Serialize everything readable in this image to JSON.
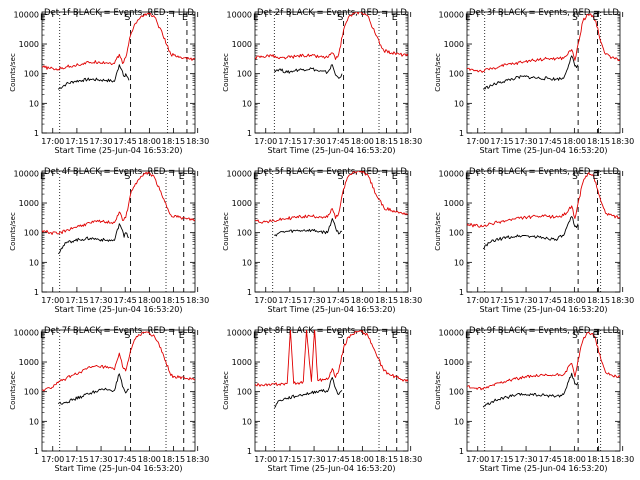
{
  "figure": {
    "x_ticks": [
      "17:00",
      "17:15",
      "17:30",
      "17:45",
      "18:00",
      "18:15",
      "18:30"
    ],
    "y_ticks": [
      "1",
      "10",
      "100",
      "1000",
      "10000"
    ],
    "ylabel": "Counts/sec",
    "xlabel": "Start Time (25-Jun-04 16:53:20)",
    "legend": "BLACK = Events, RED = LLD",
    "marker_start": "S",
    "marker_end": "E",
    "colors": {
      "events": "#000000",
      "lld": "#e00000",
      "axes": "#000000",
      "background": "#ffffff"
    }
  },
  "chart_data": [
    {
      "type": "line",
      "title": "Det 1f BLACK = Events, RED = LLD",
      "xlabel": "Start Time (25-Jun-04 16:53:20)",
      "ylabel": "Counts/sec",
      "yscale": "log",
      "ylim": [
        1,
        12000
      ],
      "xlim_min": [
        0,
        95
      ],
      "x_tick_labels": [
        "17:00",
        "17:15",
        "17:30",
        "17:45",
        "18:00",
        "18:15",
        "18:30"
      ],
      "dotted_lines_min": [
        11,
        78
      ],
      "dashed_lines_min": [
        55,
        90
      ],
      "series": [
        {
          "name": "Events",
          "color": "#000000",
          "x": [
            10,
            15,
            20,
            25,
            30,
            35,
            40,
            45,
            48,
            50,
            51,
            52,
            54
          ],
          "y": [
            30,
            45,
            55,
            60,
            65,
            62,
            60,
            55,
            200,
            120,
            80,
            100,
            60
          ]
        },
        {
          "name": "LLD",
          "color": "#e00000",
          "x": [
            0,
            5,
            10,
            15,
            20,
            25,
            30,
            35,
            40,
            45,
            48,
            50,
            52,
            55,
            58,
            62,
            66,
            70,
            75,
            80,
            85,
            90,
            95
          ],
          "y": [
            170,
            150,
            140,
            170,
            190,
            215,
            240,
            250,
            235,
            220,
            450,
            220,
            350,
            2000,
            5000,
            9000,
            11000,
            8000,
            2000,
            450,
            350,
            310,
            300
          ]
        }
      ]
    },
    {
      "type": "line",
      "title": "Det 2f BLACK = Events, RED = LLD",
      "xlabel": "Start Time (25-Jun-04 16:53:20)",
      "ylabel": "Counts/sec",
      "yscale": "log",
      "ylim": [
        1,
        12000
      ],
      "xlim_min": [
        0,
        95
      ],
      "x_tick_labels": [
        "17:00",
        "17:15",
        "17:30",
        "17:45",
        "18:00",
        "18:15",
        "18:30"
      ],
      "dotted_lines_min": [
        12,
        77
      ],
      "dashed_lines_min": [
        55,
        88
      ],
      "series": [
        {
          "name": "Events",
          "color": "#000000",
          "x": [
            12,
            15,
            20,
            25,
            30,
            35,
            40,
            45,
            48,
            50,
            52,
            54
          ],
          "y": [
            130,
            140,
            110,
            130,
            140,
            150,
            120,
            110,
            200,
            90,
            70,
            100
          ]
        },
        {
          "name": "LLD",
          "color": "#e00000",
          "x": [
            0,
            5,
            10,
            15,
            20,
            25,
            30,
            35,
            40,
            45,
            48,
            50,
            52,
            55,
            58,
            62,
            66,
            70,
            75,
            80,
            85,
            90,
            95
          ],
          "y": [
            350,
            380,
            420,
            320,
            350,
            380,
            420,
            400,
            370,
            350,
            500,
            300,
            450,
            3000,
            8000,
            11000,
            12000,
            9000,
            2000,
            600,
            500,
            450,
            400
          ]
        }
      ]
    },
    {
      "type": "line",
      "title": "Det 3f BLACK = Events, RED = LLD",
      "xlabel": "Start Time (25-Jun-04 16:53:20)",
      "ylabel": "Counts/sec",
      "yscale": "log",
      "ylim": [
        1,
        12000
      ],
      "xlim_min": [
        0,
        95
      ],
      "x_tick_labels": [
        "17:00",
        "17:15",
        "17:30",
        "17:45",
        "18:00",
        "18:15",
        "18:30"
      ],
      "dotted_lines_min": [
        11,
        83
      ],
      "dashed_lines_min": [
        69,
        81
      ],
      "series": [
        {
          "name": "Events",
          "color": "#000000",
          "x": [
            10,
            15,
            20,
            25,
            30,
            35,
            40,
            45,
            50,
            55,
            60,
            65,
            67,
            68,
            69
          ],
          "y": [
            30,
            40,
            50,
            60,
            70,
            80,
            75,
            70,
            70,
            65,
            70,
            400,
            180,
            160,
            200
          ]
        },
        {
          "name": "LLD",
          "color": "#e00000",
          "x": [
            0,
            5,
            10,
            15,
            20,
            25,
            30,
            35,
            40,
            45,
            50,
            55,
            60,
            65,
            67,
            69,
            72,
            75,
            78,
            80,
            83,
            86,
            90,
            95
          ],
          "y": [
            150,
            130,
            120,
            150,
            170,
            200,
            220,
            250,
            280,
            300,
            320,
            320,
            330,
            650,
            280,
            1000,
            6000,
            10000,
            9000,
            6000,
            1200,
            450,
            350,
            300
          ]
        }
      ]
    },
    {
      "type": "line",
      "title": "Det 4f BLACK = Events, RED = LLD",
      "xlabel": "Start Time (25-Jun-04 16:53:20)",
      "ylabel": "Counts/sec",
      "yscale": "log",
      "ylim": [
        1,
        12000
      ],
      "xlim_min": [
        0,
        95
      ],
      "x_tick_labels": [
        "17:00",
        "17:15",
        "17:30",
        "17:45",
        "18:00",
        "18:15",
        "18:30"
      ],
      "dotted_lines_min": [
        11,
        77
      ],
      "dashed_lines_min": [
        55,
        88
      ],
      "series": [
        {
          "name": "Events",
          "color": "#000000",
          "x": [
            10,
            12,
            15,
            20,
            25,
            30,
            35,
            40,
            45,
            48,
            50,
            51,
            52,
            54
          ],
          "y": [
            20,
            30,
            45,
            55,
            60,
            65,
            60,
            55,
            55,
            200,
            120,
            70,
            100,
            70
          ]
        },
        {
          "name": "LLD",
          "color": "#e00000",
          "x": [
            0,
            5,
            10,
            15,
            20,
            25,
            30,
            35,
            40,
            45,
            48,
            50,
            52,
            55,
            58,
            62,
            66,
            70,
            75,
            80,
            85,
            90,
            95
          ],
          "y": [
            120,
            100,
            90,
            120,
            150,
            180,
            210,
            240,
            230,
            220,
            500,
            260,
            320,
            2000,
            4500,
            8000,
            11000,
            7000,
            1500,
            400,
            330,
            290,
            270
          ]
        }
      ]
    },
    {
      "type": "line",
      "title": "Det 5f BLACK = Events, RED = LLD",
      "xlabel": "Start Time (25-Jun-04 16:53:20)",
      "ylabel": "Counts/sec",
      "yscale": "log",
      "ylim": [
        1,
        12000
      ],
      "xlim_min": [
        0,
        95
      ],
      "x_tick_labels": [
        "17:00",
        "17:15",
        "17:30",
        "17:45",
        "18:00",
        "18:15",
        "18:30"
      ],
      "dotted_lines_min": [
        11,
        77
      ],
      "dashed_lines_min": [
        55,
        88
      ],
      "series": [
        {
          "name": "Events",
          "color": "#000000",
          "x": [
            12,
            15,
            20,
            25,
            30,
            35,
            40,
            45,
            48,
            50,
            52,
            54
          ],
          "y": [
            80,
            100,
            110,
            115,
            120,
            120,
            110,
            100,
            300,
            150,
            90,
            110
          ]
        },
        {
          "name": "LLD",
          "color": "#e00000",
          "x": [
            0,
            5,
            10,
            15,
            20,
            25,
            30,
            35,
            40,
            45,
            48,
            50,
            52,
            55,
            58,
            62,
            66,
            70,
            75,
            80,
            85,
            90,
            95
          ],
          "y": [
            260,
            230,
            240,
            270,
            300,
            330,
            350,
            360,
            350,
            330,
            650,
            300,
            450,
            3000,
            8000,
            11000,
            12000,
            9000,
            2000,
            700,
            550,
            480,
            430
          ]
        }
      ]
    },
    {
      "type": "line",
      "title": "Det 6f BLACK = Events, RED = LLD",
      "xlabel": "Start Time (25-Jun-04 16:53:20)",
      "ylabel": "Counts/sec",
      "yscale": "log",
      "ylim": [
        1,
        12000
      ],
      "xlim_min": [
        0,
        95
      ],
      "x_tick_labels": [
        "17:00",
        "17:15",
        "17:30",
        "17:45",
        "18:00",
        "18:15",
        "18:30"
      ],
      "dotted_lines_min": [
        11,
        83
      ],
      "dashed_lines_min": [
        69,
        81
      ],
      "series": [
        {
          "name": "Events",
          "color": "#000000",
          "x": [
            10,
            15,
            20,
            25,
            30,
            35,
            40,
            45,
            50,
            55,
            60,
            65,
            67,
            68,
            69
          ],
          "y": [
            30,
            50,
            60,
            70,
            75,
            80,
            75,
            70,
            65,
            60,
            80,
            350,
            160,
            150,
            200
          ]
        },
        {
          "name": "LLD",
          "color": "#e00000",
          "x": [
            0,
            5,
            10,
            15,
            20,
            25,
            30,
            35,
            40,
            45,
            50,
            55,
            60,
            65,
            67,
            69,
            72,
            75,
            78,
            80,
            83,
            86,
            90,
            95
          ],
          "y": [
            200,
            170,
            160,
            200,
            230,
            260,
            290,
            320,
            340,
            350,
            350,
            340,
            380,
            800,
            300,
            1000,
            5000,
            9500,
            9000,
            5000,
            1200,
            450,
            380,
            320
          ]
        }
      ]
    },
    {
      "type": "line",
      "title": "Det 7f BLACK = Events, RED = LLD",
      "xlabel": "Start Time (25-Jun-04 16:53:20)",
      "ylabel": "Counts/sec",
      "yscale": "log",
      "ylim": [
        1,
        12000
      ],
      "xlim_min": [
        0,
        95
      ],
      "x_tick_labels": [
        "17:00",
        "17:15",
        "17:30",
        "17:45",
        "18:00",
        "18:15",
        "18:30"
      ],
      "dotted_lines_min": [
        11,
        77
      ],
      "dashed_lines_min": [
        55,
        88
      ],
      "series": [
        {
          "name": "Events",
          "color": "#000000",
          "x": [
            10,
            15,
            20,
            25,
            30,
            35,
            40,
            45,
            48,
            50,
            52,
            54
          ],
          "y": [
            40,
            45,
            55,
            70,
            90,
            110,
            120,
            110,
            400,
            150,
            90,
            120
          ]
        },
        {
          "name": "LLD",
          "color": "#e00000",
          "x": [
            0,
            5,
            10,
            15,
            20,
            25,
            30,
            35,
            40,
            45,
            48,
            50,
            52,
            55,
            58,
            62,
            66,
            70,
            75,
            80,
            85,
            90,
            95
          ],
          "y": [
            110,
            130,
            200,
            280,
            380,
            500,
            650,
            700,
            650,
            550,
            2000,
            700,
            500,
            2500,
            6000,
            9500,
            10000,
            7000,
            2000,
            350,
            300,
            280,
            250
          ]
        }
      ]
    },
    {
      "type": "line",
      "title": "Det 8f BLACK = Events, RED = LLD",
      "xlabel": "Start Time (25-Jun-04 16:53:20)",
      "ylabel": "Counts/sec",
      "yscale": "log",
      "ylim": [
        1,
        12000
      ],
      "xlim_min": [
        0,
        95
      ],
      "x_tick_labels": [
        "17:00",
        "17:15",
        "17:30",
        "17:45",
        "18:00",
        "18:15",
        "18:30"
      ],
      "dotted_lines_min": [
        12,
        77
      ],
      "dashed_lines_min": [
        55,
        88
      ],
      "series": [
        {
          "name": "Events",
          "color": "#000000",
          "x": [
            12,
            15,
            20,
            25,
            30,
            35,
            40,
            45,
            48,
            50,
            52,
            54
          ],
          "y": [
            30,
            50,
            60,
            70,
            80,
            90,
            110,
            100,
            300,
            130,
            80,
            110
          ]
        },
        {
          "name": "LLD",
          "color": "#e00000",
          "x": [
            0,
            5,
            10,
            15,
            20,
            22,
            24,
            26,
            28,
            30,
            32,
            35,
            37,
            39,
            40,
            45,
            48,
            50,
            52,
            55,
            58,
            62,
            66,
            70,
            75,
            80,
            85,
            90,
            95
          ],
          "y": [
            180,
            160,
            170,
            180,
            190,
            12000,
            190,
            190,
            200,
            220,
            12000,
            220,
            12000,
            240,
            250,
            260,
            600,
            300,
            500,
            3000,
            7000,
            10000,
            11000,
            8000,
            2000,
            500,
            350,
            280,
            220
          ]
        }
      ]
    },
    {
      "type": "line",
      "title": "Det 9f BLACK = Events, RED = LLD",
      "xlabel": "Start Time (25-Jun-04 16:53:20)",
      "ylabel": "Counts/sec",
      "yscale": "log",
      "ylim": [
        1,
        12000
      ],
      "xlim_min": [
        0,
        95
      ],
      "x_tick_labels": [
        "17:00",
        "17:15",
        "17:30",
        "17:45",
        "18:00",
        "18:15",
        "18:30"
      ],
      "dotted_lines_min": [
        11,
        83
      ],
      "dashed_lines_min": [
        69,
        81
      ],
      "series": [
        {
          "name": "Events",
          "color": "#000000",
          "x": [
            10,
            15,
            20,
            25,
            30,
            35,
            40,
            45,
            50,
            55,
            60,
            65,
            67,
            68,
            69
          ],
          "y": [
            30,
            45,
            55,
            65,
            75,
            80,
            80,
            75,
            75,
            70,
            80,
            420,
            180,
            170,
            210
          ]
        },
        {
          "name": "LLD",
          "color": "#e00000",
          "x": [
            0,
            5,
            10,
            15,
            20,
            25,
            30,
            35,
            40,
            45,
            50,
            55,
            60,
            65,
            67,
            69,
            72,
            75,
            78,
            80,
            83,
            86,
            90,
            95
          ],
          "y": [
            150,
            130,
            120,
            160,
            200,
            240,
            270,
            300,
            330,
            340,
            350,
            360,
            380,
            900,
            320,
            1200,
            5500,
            9800,
            9200,
            5500,
            1300,
            450,
            360,
            320
          ]
        }
      ]
    }
  ]
}
